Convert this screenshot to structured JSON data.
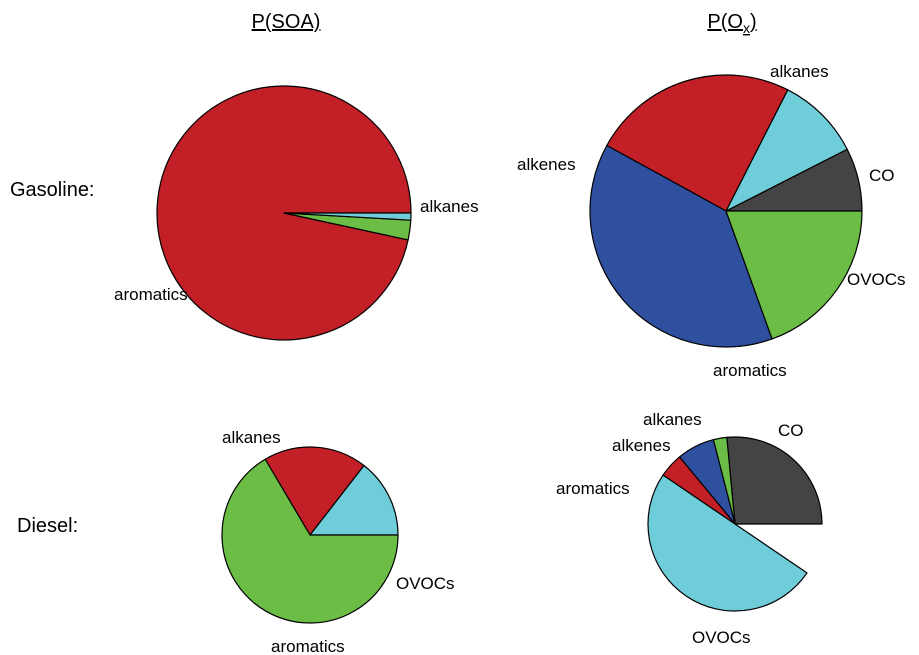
{
  "row_labels": {
    "gasoline": "Gasoline:",
    "diesel": "Diesel:"
  },
  "col_titles": {
    "soa": {
      "main": "P(SOA)"
    },
    "ox": {
      "pre": "P(O",
      "sub": "x",
      "post": ")"
    }
  },
  "colors": {
    "aromatics": "#c21f26",
    "alkanes": "#6bbd45",
    "alkenes": "#2f4f9f",
    "OVOCs": "#6fcdd9",
    "CO": "#444444"
  },
  "chart_data": [
    {
      "type": "pie",
      "id": "gasoline-soa",
      "row": "Gasoline:",
      "column": "P(SOA)",
      "slices": [
        {
          "label": "aromatics",
          "value": 0.966
        },
        {
          "label": "alkanes",
          "value": 0.025
        },
        {
          "label": "",
          "value": 0.009,
          "color_key": "OVOCs"
        }
      ],
      "labels": [
        "aromatics",
        "alkanes"
      ]
    },
    {
      "type": "pie",
      "id": "gasoline-ox",
      "row": "Gasoline:",
      "column": "P(Ox)",
      "slices": [
        {
          "label": "CO",
          "value": 0.075
        },
        {
          "label": "OVOCs",
          "value": 0.1
        },
        {
          "label": "aromatics",
          "value": 0.245
        },
        {
          "label": "alkenes",
          "value": 0.385
        },
        {
          "label": "alkanes",
          "value": 0.195
        }
      ]
    },
    {
      "type": "pie",
      "id": "diesel-soa",
      "row": "Diesel:",
      "column": "P(SOA)",
      "slices": [
        {
          "label": "OVOCs",
          "value": 0.145
        },
        {
          "label": "aromatics",
          "value": 0.19
        },
        {
          "label": "alkanes",
          "value": 0.665
        }
      ]
    },
    {
      "type": "pie",
      "id": "diesel-ox",
      "row": "Diesel:",
      "column": "P(Ox)",
      "slices": [
        {
          "label": "CO",
          "value": 0.265
        },
        {
          "label": "alkanes",
          "value": 0.025
        },
        {
          "label": "alkenes",
          "value": 0.07
        },
        {
          "label": "aromatics",
          "value": 0.045
        },
        {
          "label": "OVOCs",
          "value": 0.5
        }
      ]
    }
  ]
}
